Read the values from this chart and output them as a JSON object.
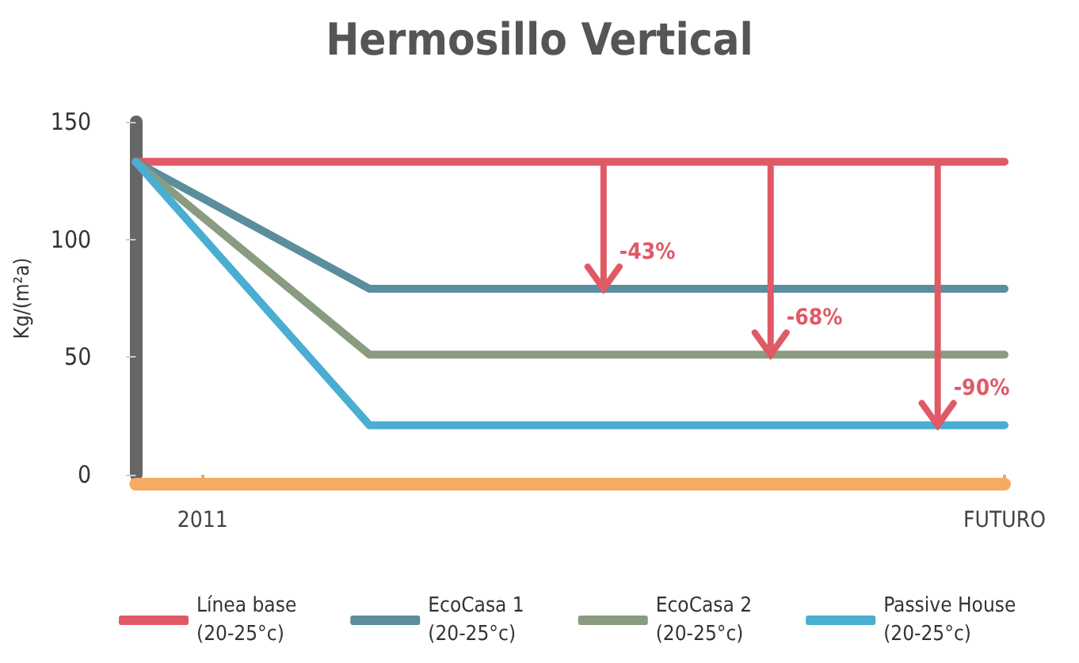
{
  "chart_data": {
    "type": "line",
    "title": "Hermosillo Vertical",
    "ylabel": "Kg/(m²a)",
    "categories": [
      null,
      null,
      "2011",
      null,
      null,
      null,
      null,
      null,
      null,
      null,
      null,
      null,
      null,
      null,
      null,
      null,
      null,
      null,
      null,
      null,
      null,
      null,
      null,
      null,
      null,
      null,
      "FUTURO"
    ],
    "ylim": [
      0,
      150
    ],
    "yticks": [
      0,
      50,
      100,
      150
    ],
    "grid": false,
    "legend": "bottom",
    "marker": "none",
    "line_style": "solid",
    "series": [
      {
        "name": "Línea base (20-25°c)",
        "color": "#e05a66",
        "values": [
          133,
          null,
          null,
          null,
          null,
          null,
          null,
          133,
          null,
          null,
          null,
          null,
          null,
          null,
          null,
          null,
          null,
          null,
          null,
          null,
          null,
          null,
          null,
          null,
          null,
          null,
          133
        ]
      },
      {
        "name": "EcoCasa 1 (20-25°c)",
        "color": "#5b8e9c",
        "values": [
          133,
          null,
          null,
          null,
          null,
          null,
          null,
          79,
          null,
          null,
          null,
          null,
          null,
          null,
          null,
          null,
          null,
          null,
          null,
          null,
          null,
          null,
          null,
          null,
          null,
          null,
          79
        ]
      },
      {
        "name": "EcoCasa 2 (20-25°c)",
        "color": "#8a9c80",
        "values": [
          133,
          null,
          null,
          null,
          null,
          null,
          null,
          51,
          null,
          null,
          null,
          null,
          null,
          null,
          null,
          null,
          null,
          null,
          null,
          null,
          null,
          null,
          null,
          null,
          null,
          null,
          51
        ]
      },
      {
        "name": "Passive House (20-25°c)",
        "color": "#4aadd2",
        "values": [
          133,
          null,
          null,
          null,
          null,
          null,
          null,
          21,
          null,
          null,
          null,
          null,
          null,
          null,
          null,
          null,
          null,
          null,
          null,
          null,
          null,
          null,
          null,
          null,
          null,
          null,
          21
        ]
      }
    ],
    "annotations": [
      {
        "text": "-43%",
        "y": 79
      },
      {
        "text": "-68%",
        "y": 51
      },
      {
        "text": "-90%",
        "y": 21
      }
    ]
  }
}
